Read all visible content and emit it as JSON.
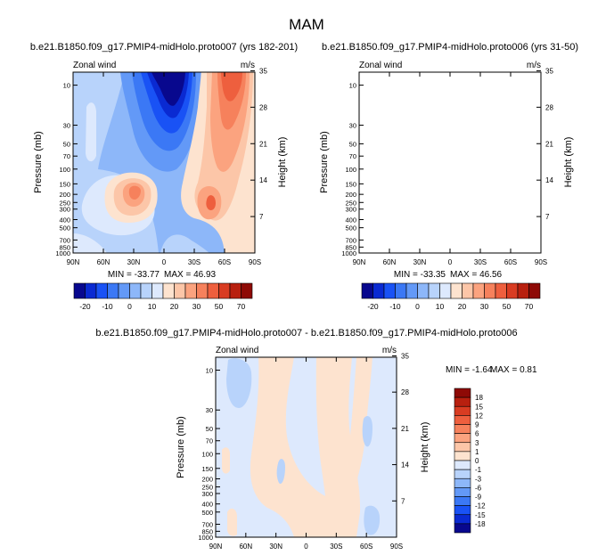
{
  "figure_title": "MAM",
  "colors": {
    "neg": [
      "#08088e",
      "#0a2ad2",
      "#1952f5",
      "#3b78f5",
      "#6399f7",
      "#8db7f9",
      "#b8d3fb",
      "#dde9fd"
    ],
    "pos": [
      "#fde3cf",
      "#fcc6a8",
      "#fba37f",
      "#f6815c",
      "#ee5f3e",
      "#d93c22",
      "#b8200f",
      "#8e0a06"
    ],
    "diff_neg": [
      "#dde9fd",
      "#b8d3fb",
      "#8db7f9",
      "#6399f7",
      "#3b78f5",
      "#1952f5",
      "#0a2ad2",
      "#08088e"
    ],
    "diff_pos": [
      "#fde3cf",
      "#fcc6a8",
      "#fba37f",
      "#f6815c",
      "#ee5f3e",
      "#d93c22",
      "#b8200f",
      "#8e0a06"
    ]
  },
  "chart_data": [
    {
      "type": "contour",
      "panel": "top-left",
      "title": "b.e21.B1850.f09_g17.PMIP4-midHolo.proto007 (yrs 182-201)",
      "left_label": "Zonal wind",
      "right_label": "m/s",
      "ylabel": "Pressure (mb)",
      "y2label": "Height (km)",
      "x_ticks": [
        "90N",
        "60N",
        "30N",
        "0",
        "30S",
        "60S",
        "90S"
      ],
      "y_ticks": [
        "10",
        "30",
        "50",
        "70",
        "100",
        "150",
        "200",
        "250",
        "300",
        "400",
        "500",
        "700",
        "850",
        "1000"
      ],
      "y2_ticks": [
        "35",
        "28",
        "21",
        "14",
        "7"
      ],
      "min_label": "MIN = -33.77",
      "max_label": "MAX = 46.93",
      "min": -33.77,
      "max": 46.93
    },
    {
      "type": "contour",
      "panel": "top-right",
      "title": "b.e21.B1850.f09_g17.PMIP4-midHolo.proto006 (yrs 31-50)",
      "left_label": "Zonal wind",
      "right_label": "m/s",
      "ylabel": "Pressure (mb)",
      "y2label": "Height (km)",
      "x_ticks": [
        "90N",
        "60N",
        "30N",
        "0",
        "30S",
        "60S",
        "90S"
      ],
      "y_ticks": [
        "10",
        "30",
        "50",
        "70",
        "100",
        "150",
        "200",
        "250",
        "300",
        "400",
        "500",
        "700",
        "850",
        "1000"
      ],
      "y2_ticks": [
        "35",
        "28",
        "21",
        "14",
        "7"
      ],
      "min_label": "MIN = -33.35",
      "max_label": "MAX = 46.56",
      "min": -33.35,
      "max": 46.56
    },
    {
      "type": "contour",
      "panel": "bottom-difference",
      "title": "b.e21.B1850.f09_g17.PMIP4-midHolo.proto007 - b.e21.B1850.f09_g17.PMIP4-midHolo.proto006",
      "left_label": "Zonal wind",
      "right_label": "m/s",
      "ylabel": "Pressure (mb)",
      "y2label": "Height (km)",
      "x_ticks": [
        "90N",
        "60N",
        "30N",
        "0",
        "30S",
        "60S",
        "90S"
      ],
      "y_ticks": [
        "10",
        "30",
        "50",
        "70",
        "100",
        "150",
        "200",
        "250",
        "300",
        "400",
        "500",
        "700",
        "850",
        "1000"
      ],
      "y2_ticks": [
        "35",
        "28",
        "21",
        "14",
        "7"
      ],
      "min_label": "MIN = -1.64",
      "max_label": "MAX =  0.81",
      "min": -1.64,
      "max": 0.81
    }
  ],
  "colorbar_main": {
    "labels": [
      "-20",
      "-10",
      "0",
      "10",
      "20",
      "30",
      "50",
      "70"
    ]
  },
  "colorbar_diff": {
    "labels": [
      "18",
      "15",
      "12",
      "9",
      "6",
      "3",
      "1",
      "0",
      "-1",
      "-3",
      "-6",
      "-9",
      "-12",
      "-15",
      "-18"
    ]
  }
}
